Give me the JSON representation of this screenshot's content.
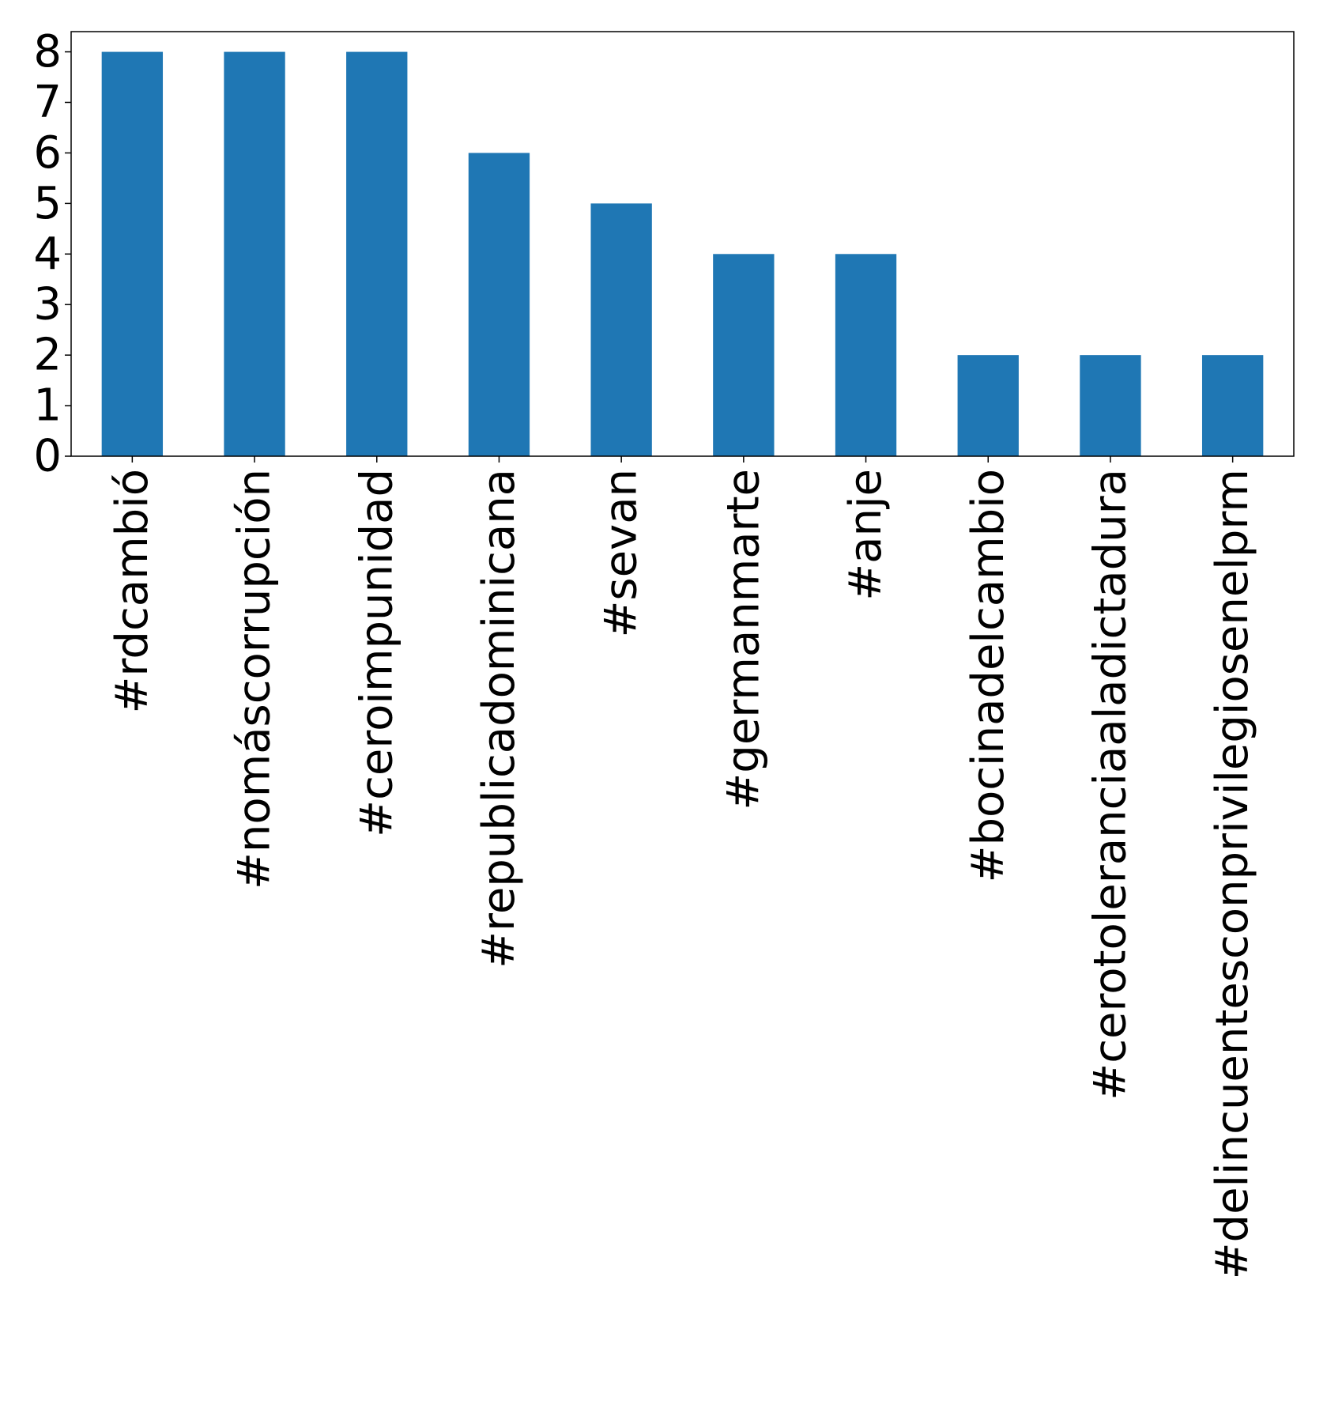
{
  "chart_data": {
    "type": "bar",
    "title": "",
    "xlabel": "",
    "ylabel": "",
    "categories": [
      "#rdcambió",
      "#nomáscorrupción",
      "#ceroimpunidad",
      "#republicadominicana",
      "#sevan",
      "#germanmarte",
      "#anje",
      "#bocinadelcambio",
      "#cerotoleranciaaladictadura",
      "#delincuentesconprivilegiosenelprm"
    ],
    "values": [
      8,
      8,
      8,
      6,
      5,
      4,
      4,
      2,
      2,
      2
    ],
    "ylim": [
      0,
      8.4
    ],
    "yticks": [
      0,
      1,
      2,
      3,
      4,
      5,
      6,
      7,
      8
    ],
    "bar_color": "#1f77b4",
    "grid": false,
    "legend": "none",
    "xtick_rotation": "vertical"
  }
}
